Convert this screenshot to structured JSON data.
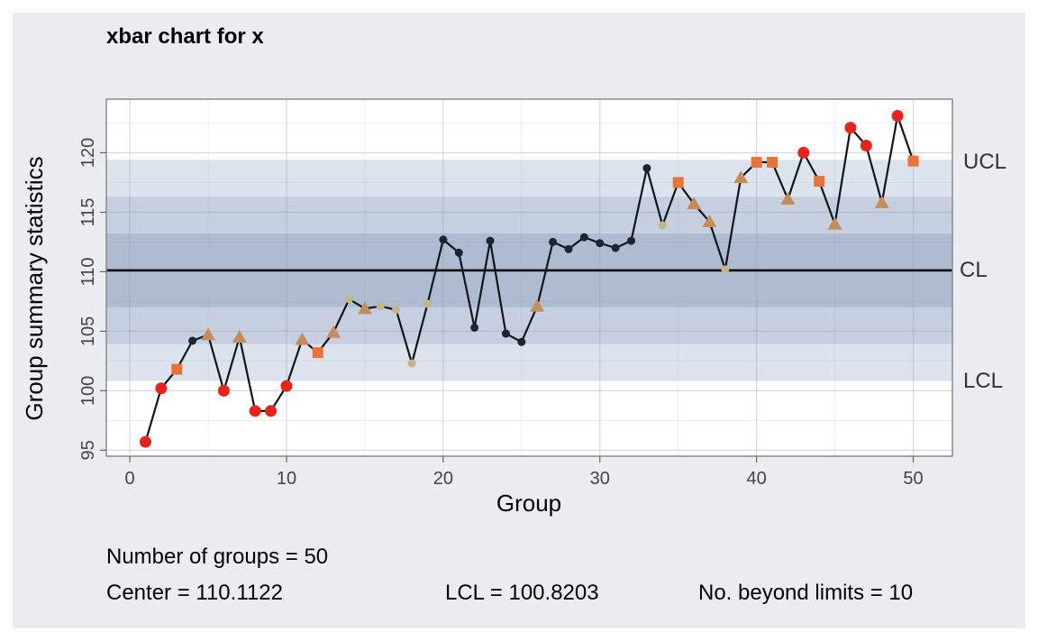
{
  "chart_data": {
    "type": "line",
    "title": "xbar chart for x",
    "xlabel": "Group",
    "ylabel": "Group summary statistics",
    "xlim": [
      -1.5,
      52.5
    ],
    "ylim": [
      94.5,
      124.5
    ],
    "x_ticks": [
      0,
      10,
      20,
      30,
      40,
      50
    ],
    "y_ticks": [
      95,
      100,
      105,
      110,
      115,
      120
    ],
    "grid": true,
    "center": 110.1122,
    "lcl": 100.8203,
    "ucl": 119.4041,
    "zones": [
      {
        "from": 100.8203,
        "to": 119.4041,
        "color": "#dde3ec"
      },
      {
        "from": 103.918,
        "to": 116.306,
        "color": "#c5cfdf"
      },
      {
        "from": 107.015,
        "to": 113.209,
        "color": "#aebbd1"
      }
    ],
    "limit_labels": {
      "ucl": "UCL",
      "cl": "CL",
      "lcl": "LCL"
    },
    "marker_types": {
      "beyond_limits": {
        "shape": "circle",
        "color": "#e8231c"
      },
      "zone_a": {
        "shape": "square",
        "color": "#e8743c"
      },
      "zone_b": {
        "shape": "triangle",
        "color": "#c58c5c"
      },
      "zone_c": {
        "shape": "small-circle",
        "color": "#c4b488"
      },
      "normal": {
        "shape": "dot",
        "color": "#1c2533"
      }
    },
    "line_color": "#101418",
    "points": [
      {
        "x": 1,
        "y": 95.7,
        "m": "beyond_limits"
      },
      {
        "x": 2,
        "y": 100.2,
        "m": "beyond_limits"
      },
      {
        "x": 3,
        "y": 101.8,
        "m": "zone_a"
      },
      {
        "x": 4,
        "y": 104.2,
        "m": "normal"
      },
      {
        "x": 5,
        "y": 104.7,
        "m": "zone_b"
      },
      {
        "x": 6,
        "y": 100.0,
        "m": "beyond_limits"
      },
      {
        "x": 7,
        "y": 104.5,
        "m": "zone_b"
      },
      {
        "x": 8,
        "y": 98.3,
        "m": "beyond_limits"
      },
      {
        "x": 9,
        "y": 98.3,
        "m": "beyond_limits"
      },
      {
        "x": 10,
        "y": 100.4,
        "m": "beyond_limits"
      },
      {
        "x": 11,
        "y": 104.3,
        "m": "zone_b"
      },
      {
        "x": 12,
        "y": 103.2,
        "m": "zone_a"
      },
      {
        "x": 13,
        "y": 104.9,
        "m": "zone_b"
      },
      {
        "x": 14,
        "y": 107.7,
        "m": "zone_c"
      },
      {
        "x": 15,
        "y": 106.9,
        "m": "zone_b"
      },
      {
        "x": 16,
        "y": 107.1,
        "m": "zone_c"
      },
      {
        "x": 17,
        "y": 106.8,
        "m": "zone_c"
      },
      {
        "x": 18,
        "y": 102.3,
        "m": "zone_c"
      },
      {
        "x": 19,
        "y": 107.3,
        "m": "zone_c"
      },
      {
        "x": 20,
        "y": 112.7,
        "m": "normal"
      },
      {
        "x": 21,
        "y": 111.6,
        "m": "normal"
      },
      {
        "x": 22,
        "y": 105.3,
        "m": "normal"
      },
      {
        "x": 23,
        "y": 112.6,
        "m": "normal"
      },
      {
        "x": 24,
        "y": 104.8,
        "m": "normal"
      },
      {
        "x": 25,
        "y": 104.1,
        "m": "normal"
      },
      {
        "x": 26,
        "y": 107.1,
        "m": "zone_b"
      },
      {
        "x": 27,
        "y": 112.5,
        "m": "normal"
      },
      {
        "x": 28,
        "y": 111.9,
        "m": "normal"
      },
      {
        "x": 29,
        "y": 112.9,
        "m": "normal"
      },
      {
        "x": 30,
        "y": 112.4,
        "m": "normal"
      },
      {
        "x": 31,
        "y": 112.0,
        "m": "normal"
      },
      {
        "x": 32,
        "y": 112.6,
        "m": "normal"
      },
      {
        "x": 33,
        "y": 118.7,
        "m": "normal"
      },
      {
        "x": 34,
        "y": 113.9,
        "m": "zone_c"
      },
      {
        "x": 35,
        "y": 117.5,
        "m": "zone_a"
      },
      {
        "x": 36,
        "y": 115.7,
        "m": "zone_b"
      },
      {
        "x": 37,
        "y": 114.2,
        "m": "zone_b"
      },
      {
        "x": 38,
        "y": 110.2,
        "m": "zone_c"
      },
      {
        "x": 39,
        "y": 117.9,
        "m": "zone_b"
      },
      {
        "x": 40,
        "y": 119.2,
        "m": "zone_a"
      },
      {
        "x": 41,
        "y": 119.2,
        "m": "zone_a"
      },
      {
        "x": 42,
        "y": 116.1,
        "m": "zone_b"
      },
      {
        "x": 43,
        "y": 120.0,
        "m": "beyond_limits"
      },
      {
        "x": 44,
        "y": 117.6,
        "m": "zone_a"
      },
      {
        "x": 45,
        "y": 114.0,
        "m": "zone_b"
      },
      {
        "x": 46,
        "y": 122.1,
        "m": "beyond_limits"
      },
      {
        "x": 47,
        "y": 120.6,
        "m": "beyond_limits"
      },
      {
        "x": 48,
        "y": 115.8,
        "m": "zone_b"
      },
      {
        "x": 49,
        "y": 123.1,
        "m": "beyond_limits"
      },
      {
        "x": 50,
        "y": 119.3,
        "m": "zone_a"
      }
    ]
  },
  "stats": {
    "groups": "Number of groups = 50",
    "center": "Center = 110.1122",
    "lcl": "LCL = 100.8203",
    "beyond": "No. beyond limits = 10"
  }
}
